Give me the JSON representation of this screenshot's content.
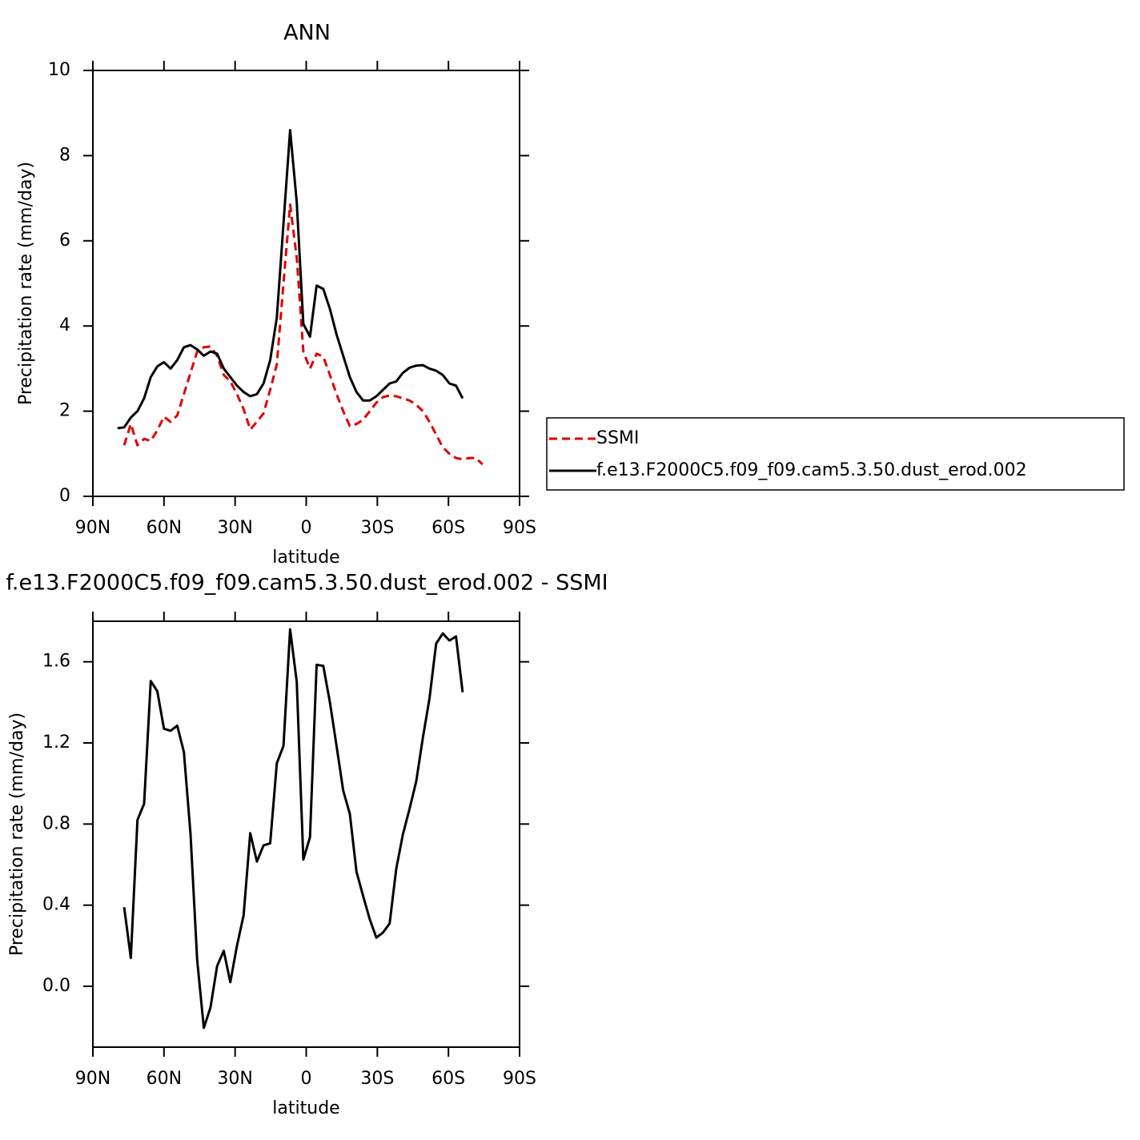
{
  "chart_data": [
    {
      "type": "line",
      "title": "ANN",
      "xlabel": "latitude",
      "ylabel": "Precipitation rate (mm/day)",
      "x": [
        79.6,
        76.8,
        74.0,
        71.2,
        68.4,
        65.6,
        62.8,
        60.0,
        57.2,
        54.4,
        51.6,
        48.8,
        46.0,
        43.2,
        40.4,
        37.6,
        34.8,
        32.0,
        29.2,
        26.4,
        23.6,
        20.8,
        18.0,
        15.2,
        12.4,
        9.6,
        6.8,
        4.0,
        1.2,
        -1.6,
        -4.4,
        -7.2,
        -10.0,
        -12.8,
        -15.6,
        -18.4,
        -21.2,
        -24.0,
        -26.8,
        -29.6,
        -32.4,
        -35.2,
        -38.0,
        -40.8,
        -43.6,
        -46.4,
        -49.2,
        -52.0,
        -54.8,
        -57.6,
        -60.4,
        -63.2,
        -66.0,
        -68.8,
        -71.6,
        -74.4
      ],
      "series": [
        {
          "name": "SSMI",
          "color": "#e00000",
          "line_style": "dashed",
          "values": [
            null,
            1.2,
            1.7,
            1.2,
            1.35,
            1.3,
            1.55,
            1.87,
            1.75,
            1.9,
            2.4,
            2.9,
            3.4,
            3.5,
            3.52,
            3.3,
            2.85,
            2.7,
            2.4,
            2.05,
            1.57,
            1.75,
            1.95,
            2.5,
            3.1,
            5.0,
            6.85,
            5.6,
            3.4,
            3.0,
            3.35,
            3.28,
            2.85,
            2.4,
            2.0,
            1.65,
            1.7,
            1.8,
            2.0,
            2.2,
            2.33,
            2.37,
            2.35,
            2.3,
            2.25,
            2.15,
            2.0,
            1.75,
            1.45,
            1.15,
            1.0,
            0.9,
            0.87,
            0.9,
            0.9,
            0.75
          ]
        },
        {
          "name": "f.e13.F2000C5.f09_f09.cam5.3.50.dust_erod.002",
          "color": "#000000",
          "line_style": "solid",
          "values": [
            1.6,
            1.62,
            1.85,
            2.0,
            2.3,
            2.8,
            3.05,
            3.15,
            3.0,
            3.2,
            3.5,
            3.55,
            3.45,
            3.3,
            3.4,
            3.35,
            3.0,
            2.8,
            2.6,
            2.45,
            2.35,
            2.4,
            2.65,
            3.2,
            4.2,
            6.4,
            8.6,
            6.9,
            4.05,
            3.75,
            4.95,
            4.87,
            4.4,
            3.8,
            3.3,
            2.8,
            2.45,
            2.25,
            2.25,
            2.35,
            2.5,
            2.65,
            2.7,
            2.9,
            3.02,
            3.07,
            3.08,
            3.0,
            2.95,
            2.85,
            2.65,
            2.6,
            2.3,
            null,
            null,
            null
          ]
        }
      ],
      "xlim": [
        90,
        -90
      ],
      "xticks": [
        {
          "value": 90,
          "label": "90N"
        },
        {
          "value": 60,
          "label": "60N"
        },
        {
          "value": 30,
          "label": "30N"
        },
        0,
        {
          "value": -30,
          "label": "30S"
        },
        {
          "value": -60,
          "label": "60S"
        },
        {
          "value": -90,
          "label": "90S"
        }
      ],
      "ylim": [
        0,
        10
      ],
      "yticks": [
        0,
        2,
        4,
        6,
        8,
        10
      ],
      "legend": "right"
    },
    {
      "type": "line",
      "title": "f.e13.F2000C5.f09_f09.cam5.3.50.dust_erod.002 - SSMI",
      "xlabel": "latitude",
      "ylabel": "Precipitation rate (mm/day)",
      "x": [
        76.8,
        74.0,
        71.2,
        68.4,
        65.6,
        62.8,
        60.0,
        57.2,
        54.4,
        51.6,
        48.8,
        46.0,
        43.2,
        40.4,
        37.6,
        34.8,
        32.0,
        29.2,
        26.4,
        23.6,
        20.8,
        18.0,
        15.2,
        12.4,
        9.6,
        6.8,
        4.0,
        1.2,
        -1.6,
        -4.4,
        -7.2,
        -10.0,
        -12.8,
        -15.6,
        -18.4,
        -21.2,
        -24.0,
        -26.8,
        -29.6,
        -32.4,
        -35.2,
        -38.0,
        -40.8,
        -43.6,
        -46.4,
        -49.2,
        -52.0,
        -54.8,
        -57.6,
        -60.4,
        -63.2,
        -66.0
      ],
      "series": [
        {
          "color": "#000000",
          "line_style": "solid",
          "values": [
            0.39,
            0.14,
            0.82,
            0.9,
            1.505,
            1.455,
            1.27,
            1.26,
            1.285,
            1.155,
            0.75,
            0.13,
            -0.205,
            -0.105,
            0.1,
            0.175,
            0.02,
            0.2,
            0.35,
            0.755,
            0.615,
            0.695,
            0.705,
            1.1,
            1.185,
            1.76,
            1.5,
            0.625,
            0.735,
            1.585,
            1.58,
            1.4,
            1.185,
            0.965,
            0.85,
            0.565,
            0.445,
            0.33,
            0.24,
            0.265,
            0.31,
            0.58,
            0.75,
            0.875,
            1.01,
            1.225,
            1.42,
            1.69,
            1.74,
            1.705,
            1.725,
            1.45
          ]
        }
      ],
      "xlim": [
        90,
        -90
      ],
      "xticks": [
        {
          "value": 90,
          "label": "90N"
        },
        {
          "value": 60,
          "label": "60N"
        },
        {
          "value": 30,
          "label": "30N"
        },
        0,
        {
          "value": -30,
          "label": "30S"
        },
        {
          "value": -60,
          "label": "60S"
        },
        {
          "value": -90,
          "label": "90S"
        }
      ],
      "ylim": [
        -0.3,
        1.8
      ],
      "yticks": [
        {
          "value": 0,
          "label": "0.0"
        },
        0.4,
        0.8,
        1.2,
        1.6
      ]
    }
  ]
}
